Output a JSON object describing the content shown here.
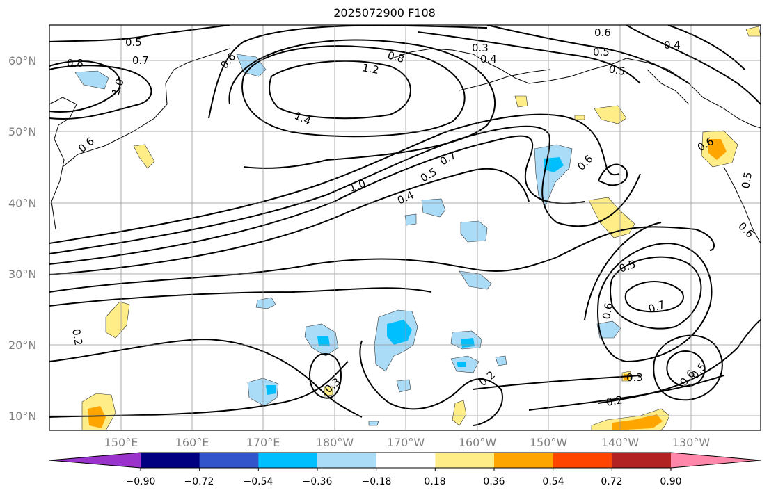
{
  "title": "2025072900 F108",
  "map": {
    "lat_ticks": [
      "60°N",
      "50°N",
      "40°N",
      "30°N",
      "20°N",
      "10°N"
    ],
    "lon_ticks": [
      "150°E",
      "160°E",
      "170°E",
      "180°W",
      "170°W",
      "160°W",
      "150°W",
      "140°W",
      "130°W"
    ],
    "contour_labels": [
      "0.5",
      "0.7",
      "0.8",
      "1.0",
      "0.6",
      "0.6",
      "1.2",
      "0.8",
      "0.3",
      "0.4",
      "0.6",
      "0.5",
      "0.4",
      "0.5",
      "1.4",
      "0.6",
      "0.7",
      "0.5",
      "0.4",
      "1.0",
      "0.6",
      "0.6",
      "0.5",
      "0.6",
      "0.5",
      "0.7",
      "0.6",
      "0.2",
      "0.3",
      "0.2",
      "0.3",
      "0.2",
      "0.5"
    ]
  },
  "colorbar": {
    "colors": [
      "#9933cc",
      "#000080",
      "#3355cc",
      "#00bfff",
      "#aadcf8",
      "#ffffff",
      "#ffee88",
      "#ffa500",
      "#ff4500",
      "#b22222",
      "#ff88aa"
    ],
    "labels": [
      "−0.90",
      "−0.72",
      "−0.54",
      "−0.36",
      "−0.18",
      "0.18",
      "0.36",
      "0.54",
      "0.72",
      "0.90"
    ]
  }
}
